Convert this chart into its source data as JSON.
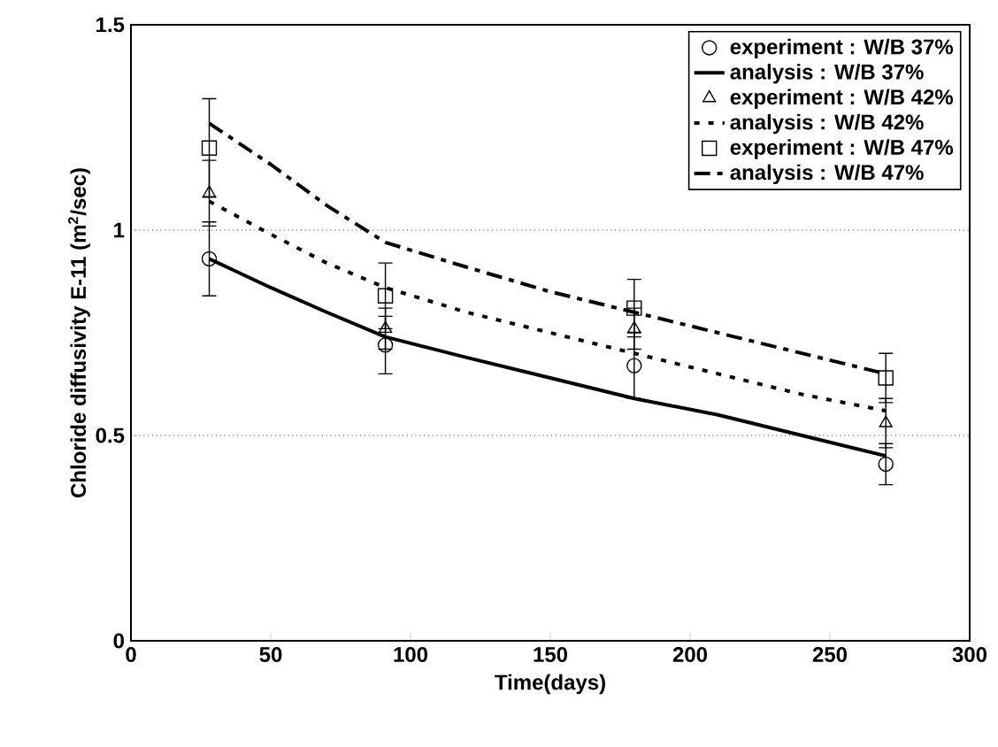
{
  "chart_data": {
    "type": "scatter",
    "xlabel": "Time(days)",
    "ylabel": "Chloride diffusivity E-11 (m$^{2}$/sec)",
    "xlim": [
      0,
      300
    ],
    "ylim": [
      0,
      1.5
    ],
    "xticks": [
      0,
      50,
      100,
      150,
      200,
      250,
      300
    ],
    "yticks": [
      0,
      0.5,
      1,
      1.5
    ],
    "grid": "y",
    "legend": "top right",
    "series": [
      {
        "name": "experiment : W/B 37%",
        "marker": "circle",
        "color": "#000000",
        "x": [
          28,
          91,
          180,
          270
        ],
        "values": [
          0.93,
          0.72,
          0.67,
          0.43
        ],
        "errors": [
          0.09,
          0.07,
          0.08,
          0.05
        ]
      },
      {
        "name": "analysis : W/B 37%",
        "type": "line",
        "line_style": "solid",
        "marker": "none",
        "color": "#000000",
        "x": [
          28,
          50,
          70,
          91,
          120,
          150,
          180,
          210,
          240,
          270
        ],
        "values": [
          0.93,
          0.86,
          0.8,
          0.74,
          0.69,
          0.64,
          0.59,
          0.55,
          0.5,
          0.45
        ]
      },
      {
        "name": "experiment : W/B 42%",
        "marker": "triangle",
        "color": "#000000",
        "x": [
          28,
          91,
          180,
          270
        ],
        "values": [
          1.09,
          0.76,
          0.76,
          0.53
        ],
        "errors": [
          0.08,
          0.05,
          0.05,
          0.06
        ]
      },
      {
        "name": "analysis : W/B 42%",
        "type": "line",
        "line_style": "dotted",
        "marker": "none",
        "color": "#000000",
        "x": [
          28,
          50,
          70,
          91,
          120,
          150,
          180,
          210,
          240,
          270
        ],
        "values": [
          1.07,
          0.99,
          0.92,
          0.86,
          0.8,
          0.75,
          0.7,
          0.65,
          0.6,
          0.56
        ]
      },
      {
        "name": "experiment : W/B 47%",
        "marker": "square",
        "color": "#000000",
        "x": [
          28,
          91,
          180,
          270
        ],
        "values": [
          1.2,
          0.84,
          0.81,
          0.64
        ],
        "errors": [
          0.12,
          0.08,
          0.07,
          0.06
        ]
      },
      {
        "name": "analysis : W/B 47%",
        "type": "line",
        "line_style": "dashed",
        "marker": "none",
        "color": "#000000",
        "x": [
          28,
          50,
          70,
          91,
          120,
          150,
          180,
          210,
          240,
          270
        ],
        "values": [
          1.26,
          1.16,
          1.06,
          0.97,
          0.91,
          0.85,
          0.8,
          0.75,
          0.7,
          0.65
        ]
      }
    ]
  }
}
